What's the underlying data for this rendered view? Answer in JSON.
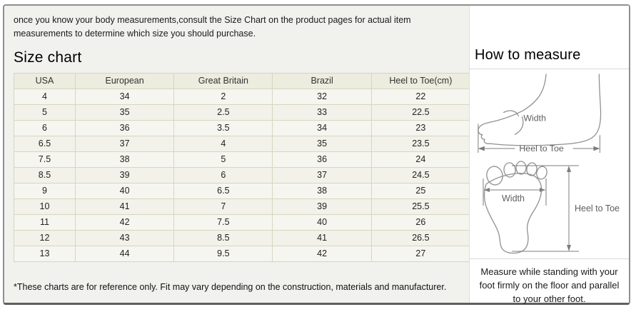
{
  "intro": {
    "text": "once you know your body measurements,consult the Size Chart on the product pages for actual item measurements to determine which size you should purchase."
  },
  "size_chart": {
    "title": "Size chart",
    "table": {
      "headers": [
        "USA",
        "European",
        "Great Britain",
        "Brazil",
        "Heel to Toe(cm)"
      ],
      "rows": [
        [
          "4",
          "34",
          "2",
          "32",
          "22"
        ],
        [
          "5",
          "35",
          "2.5",
          "33",
          "22.5"
        ],
        [
          "6",
          "36",
          "3.5",
          "34",
          "23"
        ],
        [
          "6.5",
          "37",
          "4",
          "35",
          "23.5"
        ],
        [
          "7.5",
          "38",
          "5",
          "36",
          "24"
        ],
        [
          "8.5",
          "39",
          "6",
          "37",
          "24.5"
        ],
        [
          "9",
          "40",
          "6.5",
          "38",
          "25"
        ],
        [
          "10",
          "41",
          "7",
          "39",
          "25.5"
        ],
        [
          "11",
          "42",
          "7.5",
          "40",
          "26"
        ],
        [
          "12",
          "43",
          "8.5",
          "41",
          "26.5"
        ],
        [
          "13",
          "44",
          "9.5",
          "42",
          "27"
        ]
      ]
    },
    "footnote": "*These charts are for reference only. Fit may vary depending on the construction, materials and manufacturer."
  },
  "how_to_measure": {
    "title": "How to measure",
    "labels": {
      "width": "Width",
      "heel_to_toe": "Heel to Toe"
    },
    "note": "Measure while standing with your foot firmly on the floor and parallel to your other foot."
  },
  "colors": {
    "panel_bg": "#f1f1ee",
    "table_border": "#d6d6c0",
    "table_header_bg": "#ececdf",
    "table_row_bg": "#f6f6f0",
    "outer_border": "#8f8f8f",
    "diagram_stroke": "#909090"
  }
}
